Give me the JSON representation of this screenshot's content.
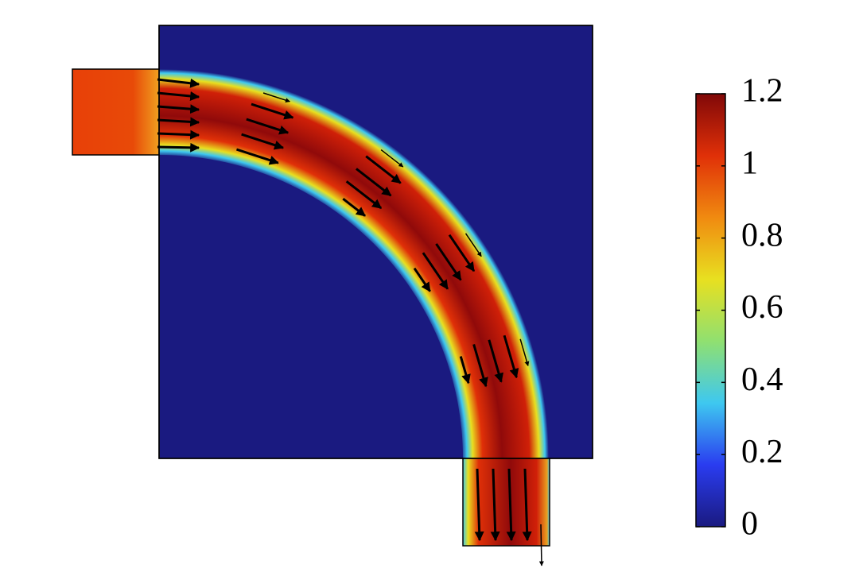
{
  "chart_data": {
    "type": "field",
    "colorbar": {
      "clim": [
        0,
        1.2
      ],
      "ticks": [
        0,
        0.2,
        0.4,
        0.6,
        0.8,
        1,
        1.2
      ],
      "colormap": [
        "#1a1a80",
        "#2a3cf0",
        "#3ec8f0",
        "#90e070",
        "#e8e020",
        "#f08a10",
        "#e03008",
        "#800808"
      ]
    }
  }
}
